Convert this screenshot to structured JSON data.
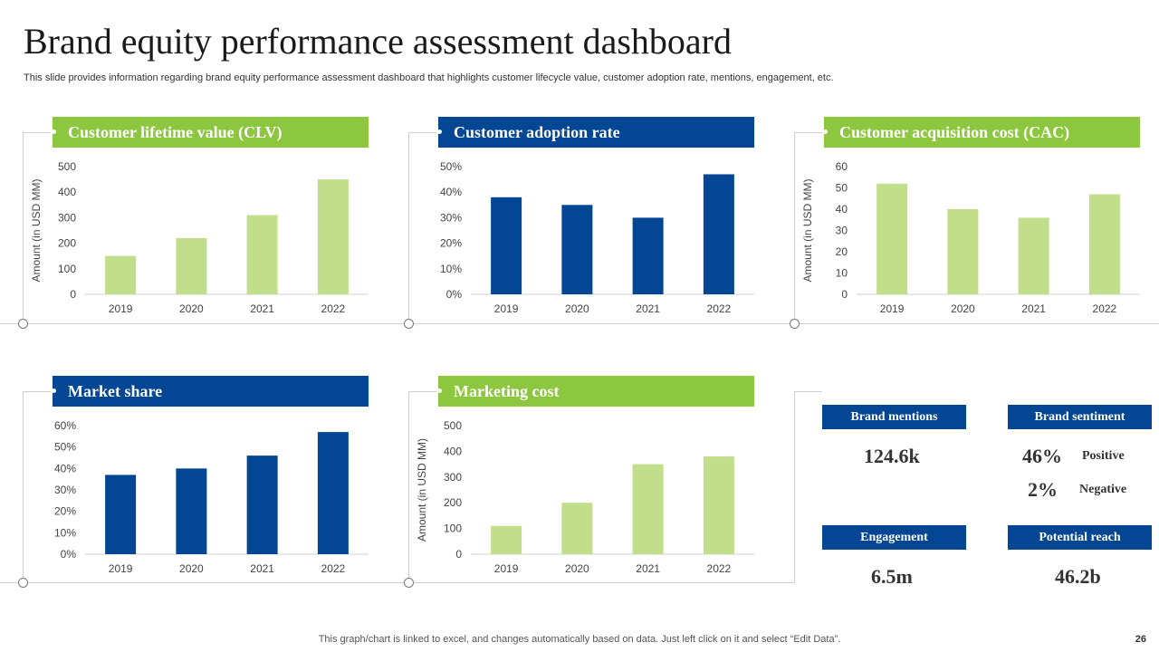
{
  "page": {
    "title": "Brand equity performance assessment dashboard",
    "subtitle": "This slide provides information regarding brand equity performance assessment dashboard that highlights customer lifecycle value, customer adoption rate, mentions, engagement, etc.",
    "footer": "This graph/chart is linked to excel, and changes automatically based on data. Just left click on it and select “Edit Data”.",
    "page_number": "26"
  },
  "colors": {
    "green": "#8dc63f",
    "bar_green": "#c1de8a",
    "blue": "#034694"
  },
  "chart_data": [
    {
      "id": "clv",
      "type": "bar",
      "title": "Customer lifetime value (CLV)",
      "categories": [
        "2019",
        "2020",
        "2021",
        "2022"
      ],
      "values": [
        150,
        220,
        310,
        450
      ],
      "ylim": [
        0,
        500
      ],
      "yticks": [
        0,
        100,
        200,
        300,
        400,
        500
      ],
      "tick_suffix": "",
      "ylabel": "Amount (in USD MM)",
      "xlabel": "",
      "color": "#c1de8a",
      "title_color": "green"
    },
    {
      "id": "adoption",
      "type": "bar",
      "title": "Customer adoption rate",
      "categories": [
        "2019",
        "2020",
        "2021",
        "2022"
      ],
      "values": [
        38,
        35,
        30,
        47
      ],
      "ylim": [
        0,
        50
      ],
      "yticks": [
        0,
        10,
        20,
        30,
        40,
        50
      ],
      "tick_suffix": "%",
      "ylabel": "",
      "xlabel": "",
      "color": "#034694",
      "title_color": "blue"
    },
    {
      "id": "cac",
      "type": "bar",
      "title": "Customer acquisition cost (CAC)",
      "categories": [
        "2019",
        "2020",
        "2021",
        "2022"
      ],
      "values": [
        52,
        40,
        36,
        47
      ],
      "ylim": [
        0,
        60
      ],
      "yticks": [
        0,
        10,
        20,
        30,
        40,
        50,
        60
      ],
      "tick_suffix": "",
      "ylabel": "Amount (in USD MM)",
      "xlabel": "",
      "color": "#c1de8a",
      "title_color": "green"
    },
    {
      "id": "market",
      "type": "bar",
      "title": "Market share",
      "categories": [
        "2019",
        "2020",
        "2021",
        "2022"
      ],
      "values": [
        37,
        40,
        46,
        57
      ],
      "ylim": [
        0,
        60
      ],
      "yticks": [
        0,
        10,
        20,
        30,
        40,
        50,
        60
      ],
      "tick_suffix": "%",
      "ylabel": "",
      "xlabel": "",
      "color": "#034694",
      "title_color": "blue"
    },
    {
      "id": "marketing",
      "type": "bar",
      "title": "Marketing cost",
      "categories": [
        "2019",
        "2020",
        "2021",
        "2022"
      ],
      "values": [
        110,
        200,
        350,
        380
      ],
      "ylim": [
        0,
        500
      ],
      "yticks": [
        0,
        100,
        200,
        300,
        400,
        500
      ],
      "tick_suffix": "",
      "ylabel": "Amount (in USD MM)",
      "xlabel": "",
      "color": "#c1de8a",
      "title_color": "green"
    }
  ],
  "kpis": {
    "brand_mentions": {
      "label": "Brand mentions",
      "value": "124.6k"
    },
    "brand_sentiment": {
      "label": "Brand sentiment",
      "positive": {
        "value": "46%",
        "label": "Positive"
      },
      "negative": {
        "value": "2%",
        "label": "Negative"
      }
    },
    "engagement": {
      "label": "Engagement",
      "value": "6.5m"
    },
    "potential_reach": {
      "label": "Potential reach",
      "value": "46.2b"
    }
  }
}
